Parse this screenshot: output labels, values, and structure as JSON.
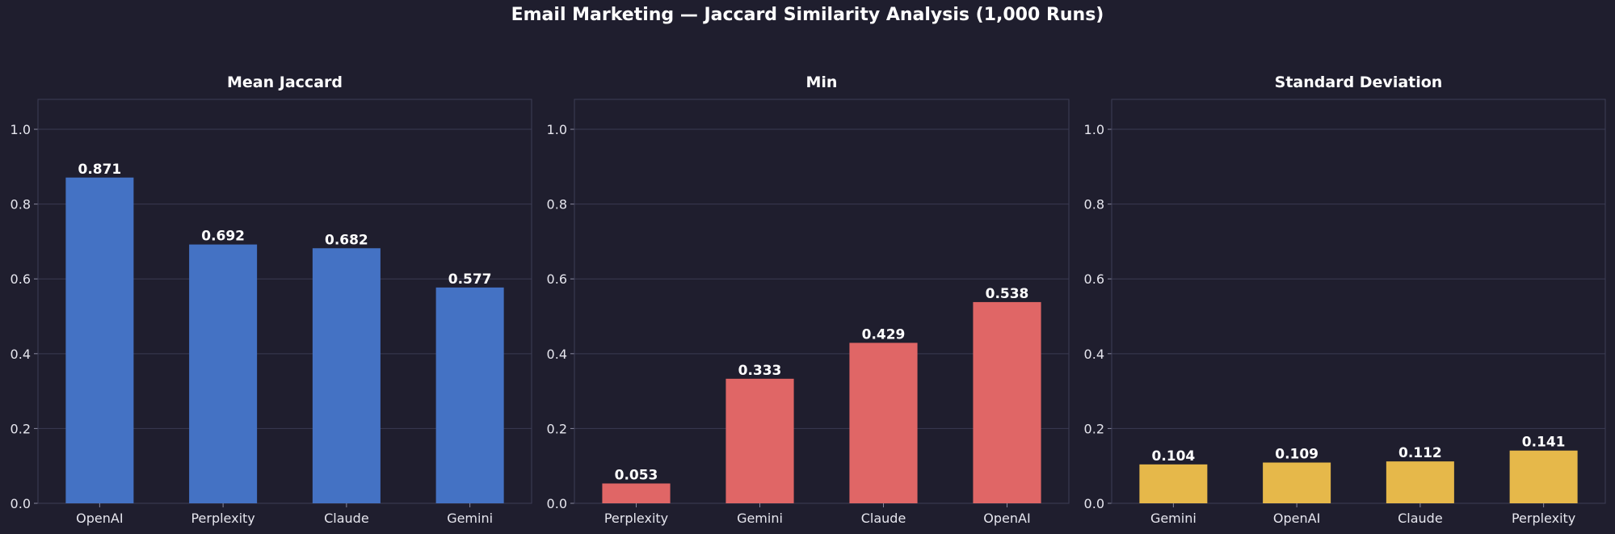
{
  "title": "Email Marketing — Jaccard Similarity Analysis (1,000 Runs)",
  "chart_data": [
    {
      "type": "bar",
      "title": "Mean Jaccard",
      "categories": [
        "OpenAI",
        "Perplexity",
        "Claude",
        "Gemini"
      ],
      "values": [
        0.871,
        0.692,
        0.682,
        0.577
      ],
      "value_labels": [
        "0.871",
        "0.692",
        "0.682",
        "0.577"
      ],
      "ylim": [
        0,
        1.08
      ],
      "yticks": [
        "0.0",
        "0.2",
        "0.4",
        "0.6",
        "0.8",
        "1.0"
      ],
      "color": "#4472c4",
      "grid": true,
      "xlabel": "",
      "ylabel": ""
    },
    {
      "type": "bar",
      "title": "Min",
      "categories": [
        "Perplexity",
        "Gemini",
        "Claude",
        "OpenAI"
      ],
      "values": [
        0.053,
        0.333,
        0.429,
        0.538
      ],
      "value_labels": [
        "0.053",
        "0.333",
        "0.429",
        "0.538"
      ],
      "ylim": [
        0,
        1.08
      ],
      "yticks": [
        "0.0",
        "0.2",
        "0.4",
        "0.6",
        "0.8",
        "1.0"
      ],
      "color": "#e06666",
      "grid": true,
      "xlabel": "",
      "ylabel": ""
    },
    {
      "type": "bar",
      "title": "Standard Deviation",
      "categories": [
        "Gemini",
        "OpenAI",
        "Claude",
        "Perplexity"
      ],
      "values": [
        0.104,
        0.109,
        0.112,
        0.141
      ],
      "value_labels": [
        "0.104",
        "0.109",
        "0.112",
        "0.141"
      ],
      "ylim": [
        0,
        1.08
      ],
      "yticks": [
        "0.0",
        "0.2",
        "0.4",
        "0.6",
        "0.8",
        "1.0"
      ],
      "color": "#e6b84a",
      "grid": true,
      "xlabel": "",
      "ylabel": ""
    }
  ]
}
